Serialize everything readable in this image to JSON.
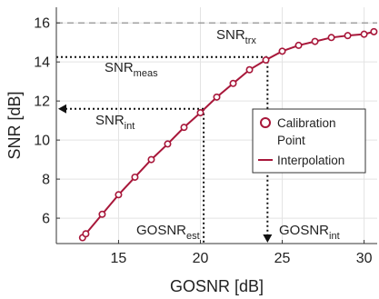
{
  "chart_data": {
    "type": "line",
    "xlabel": "GOSNR [dB]",
    "ylabel": "SNR [dB]",
    "xlim": [
      11.2,
      30.8
    ],
    "ylim": [
      4.7,
      16.8
    ],
    "xticks": [
      15,
      20,
      25,
      30
    ],
    "yticks": [
      6,
      8,
      10,
      12,
      14,
      16
    ],
    "grid": true,
    "legend_position": "right",
    "series": [
      {
        "name": "Calibration Point",
        "marker": "circle",
        "color": "#a8173a",
        "x": [
          12.8,
          13.0,
          14.0,
          15.0,
          16.0,
          17.0,
          18.0,
          19.0,
          20.0,
          21.0,
          22.0,
          23.0,
          24.0,
          25.0,
          26.0,
          27.0,
          28.0,
          29.0,
          30.0,
          30.6
        ],
        "y": [
          5.0,
          5.2,
          6.2,
          7.2,
          8.1,
          9.0,
          9.8,
          10.65,
          11.4,
          12.2,
          12.9,
          13.6,
          14.1,
          14.55,
          14.85,
          15.05,
          15.25,
          15.35,
          15.42,
          15.55
        ]
      },
      {
        "name": "Interpolation",
        "color": "#a8173a",
        "x": [
          12.8,
          13.0,
          14.0,
          15.0,
          16.0,
          17.0,
          18.0,
          19.0,
          20.0,
          21.0,
          22.0,
          23.0,
          24.0,
          25.0,
          26.0,
          27.0,
          28.0,
          29.0,
          30.0,
          30.6
        ],
        "y": [
          5.0,
          5.2,
          6.2,
          7.2,
          8.1,
          9.0,
          9.8,
          10.65,
          11.4,
          12.2,
          12.9,
          13.6,
          14.1,
          14.55,
          14.85,
          15.05,
          15.25,
          15.35,
          15.42,
          15.55
        ]
      }
    ],
    "reference_lines": {
      "snr_trx": 16.0,
      "snr_meas": 14.25,
      "snr_int": 11.6,
      "gosnr_est": 20.2,
      "gosnr_int": 24.1
    },
    "annotations": [
      {
        "id": "snr_trx",
        "base": "SNR",
        "sub": "trx",
        "color": "#999999"
      },
      {
        "id": "snr_meas",
        "base": "SNR",
        "sub": "meas",
        "color": "#222222"
      },
      {
        "id": "snr_int",
        "base": "SNR",
        "sub": "int",
        "color": "#222222"
      },
      {
        "id": "gosnr_est",
        "base": "GOSNR",
        "sub": "est",
        "color": "#222222"
      },
      {
        "id": "gosnr_int",
        "base": "GOSNR",
        "sub": "int",
        "color": "#222222"
      }
    ],
    "legend": [
      {
        "label": "Calibration",
        "label2": "Point",
        "kind": "marker"
      },
      {
        "label": "Interpolation",
        "kind": "line"
      }
    ]
  }
}
